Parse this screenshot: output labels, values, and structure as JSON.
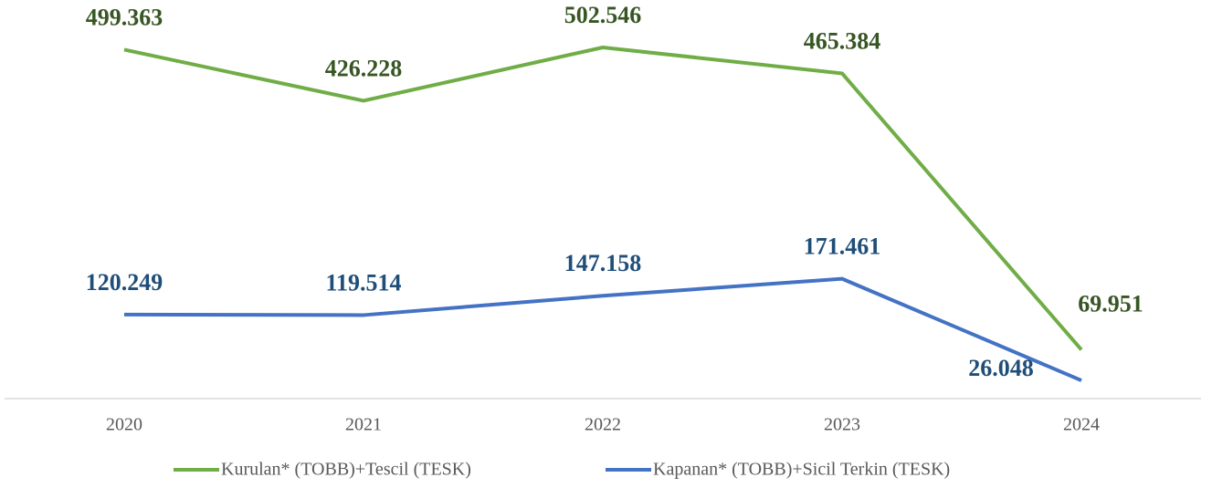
{
  "chart_data": {
    "type": "line",
    "categories": [
      "2020",
      "2021",
      "2022",
      "2023",
      "2024"
    ],
    "series": [
      {
        "name": "Kurulan* (TOBB)+Tescil (TESK)",
        "color": "#70ad47",
        "values": [
          499363,
          426228,
          502546,
          465384,
          69951
        ],
        "value_labels": [
          "499.363",
          "426.228",
          "502.546",
          "465.384",
          "69.951"
        ]
      },
      {
        "name": "Kapanan* (TOBB)+Sicil Terkin (TESK)",
        "color": "#4472c4",
        "values": [
          120249,
          119514,
          147158,
          171461,
          26048
        ],
        "value_labels": [
          "120.249",
          "119.514",
          "147.158",
          "171.461",
          "26.048"
        ]
      }
    ]
  }
}
